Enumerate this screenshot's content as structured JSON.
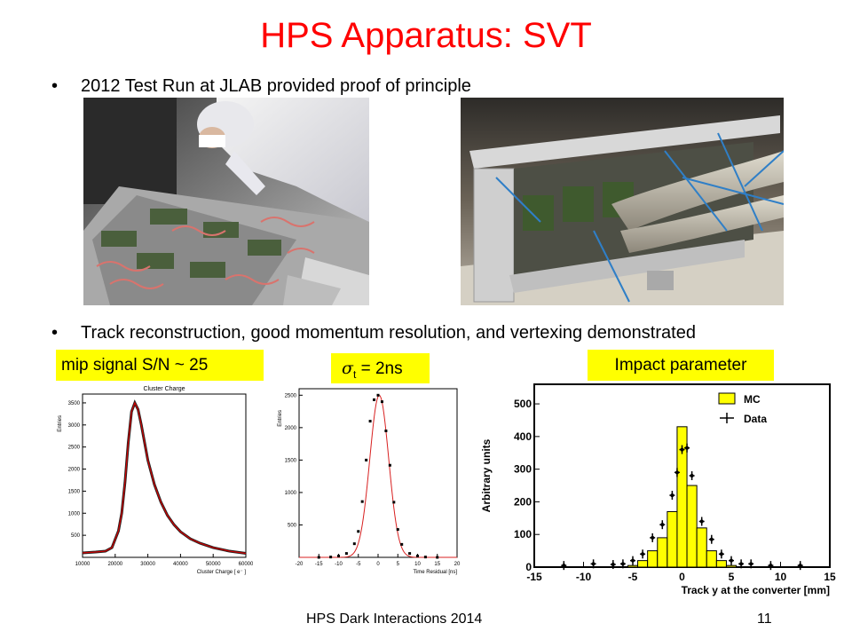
{
  "slide": {
    "title": "HPS Apparatus: SVT",
    "bullets": [
      "2012 Test Run at JLAB provided proof of principle",
      "Track reconstruction, good momentum resolution, and vertexing demonstrated"
    ],
    "labels": {
      "mip": "mip signal S/N ~ 25",
      "sigma_symbol": "σ",
      "sigma_sub": "t",
      "sigma_rest": " = 2ns",
      "impact": "Impact parameter"
    },
    "footer": {
      "center": "HPS Dark Interactions 2014",
      "page": "11"
    }
  },
  "chart_data": [
    {
      "type": "line",
      "title": "Cluster Charge",
      "xlabel": "Cluster Charge [ e⁻ ]",
      "ylabel": "Entries",
      "xlim": [
        10000,
        60000
      ],
      "ylim": [
        0,
        3700
      ],
      "xticks": [
        10000,
        20000,
        30000,
        40000,
        50000,
        60000
      ],
      "yticks": [
        500,
        1000,
        1500,
        2000,
        2500,
        3000,
        3500
      ],
      "series": [
        {
          "x": [
            10000,
            14000,
            17000,
            19000,
            21000,
            22000,
            23000,
            24000,
            25000,
            26000,
            27000,
            28000,
            29000,
            30000,
            32000,
            34000,
            36000,
            38000,
            40000,
            43000,
            46000,
            50000,
            55000,
            60000
          ],
          "values": [
            100,
            120,
            140,
            220,
            600,
            1000,
            1700,
            2600,
            3300,
            3500,
            3350,
            3000,
            2600,
            2200,
            1650,
            1250,
            950,
            740,
            580,
            420,
            320,
            220,
            140,
            90
          ]
        }
      ]
    },
    {
      "type": "scatter",
      "xlabel": "Time Residual [ns]",
      "ylabel": "Entries",
      "xlim": [
        -20,
        20
      ],
      "ylim": [
        0,
        2600
      ],
      "xticks": [
        -20,
        -15,
        -10,
        -5,
        0,
        5,
        10,
        15,
        20
      ],
      "yticks": [
        500,
        1000,
        1500,
        2000,
        2500
      ],
      "series": [
        {
          "x": [
            -15,
            -12,
            -10,
            -8,
            -6,
            -5,
            -4,
            -3,
            -2,
            -1,
            0,
            1,
            2,
            3,
            4,
            5,
            6,
            8,
            10,
            12,
            15
          ],
          "values": [
            0,
            5,
            20,
            60,
            210,
            400,
            860,
            1500,
            2100,
            2430,
            2500,
            2400,
            1950,
            1420,
            850,
            430,
            200,
            60,
            20,
            5,
            0
          ]
        }
      ]
    },
    {
      "type": "bar",
      "xlabel": "Track y at the converter [mm]",
      "ylabel": "Arbitrary units",
      "xlim": [
        -15,
        15
      ],
      "ylim": [
        0,
        560
      ],
      "xticks": [
        -15,
        -10,
        -5,
        0,
        5,
        10,
        15
      ],
      "yticks": [
        0,
        100,
        200,
        300,
        400,
        500
      ],
      "legend": [
        "MC",
        "Data"
      ],
      "legend_position": "top-right",
      "series": [
        {
          "name": "MC",
          "x": [
            -5,
            -4,
            -3,
            -2,
            -1,
            0,
            1,
            2,
            3,
            4,
            5
          ],
          "values": [
            5,
            20,
            50,
            90,
            170,
            430,
            250,
            120,
            50,
            20,
            5
          ]
        },
        {
          "name": "Data",
          "x": [
            -12,
            -9,
            -7,
            -6,
            -5,
            -4,
            -3,
            -2,
            -1,
            -0.5,
            0,
            0.5,
            1,
            2,
            3,
            4,
            5,
            6,
            7,
            9,
            12
          ],
          "values": [
            5,
            10,
            8,
            10,
            20,
            40,
            90,
            130,
            220,
            290,
            360,
            365,
            280,
            140,
            85,
            40,
            20,
            10,
            10,
            5,
            5
          ]
        }
      ]
    }
  ]
}
